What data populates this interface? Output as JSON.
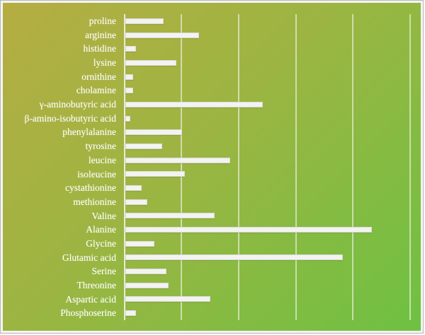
{
  "window": {
    "border_color": "#b7b7b7",
    "frame_fill": "#f4f4f4",
    "background_gradient_start": "#b5ad42",
    "background_gradient_end": "#6ec142"
  },
  "chart_data": {
    "type": "bar",
    "orientation": "horizontal",
    "title": "",
    "xlabel": "",
    "ylabel": "",
    "categories": [
      "proline",
      "arginine",
      "histidine",
      "lysine",
      "ornithine",
      "cholamine",
      "γ-aminobutyric acid",
      "β-amino-isobutyric acid",
      "phenylalanine",
      "tyrosine",
      "leucine",
      "isoleucine",
      "cystathionine",
      "methionine",
      "Valine",
      "Alanine",
      "Glycine",
      "Glutamic acid",
      "Serine",
      "Threonine",
      "Aspartic acid",
      "Phosphoserine"
    ],
    "values": [
      0.67,
      1.29,
      0.18,
      0.89,
      0.14,
      0.13,
      2.4,
      0.09,
      0.99,
      0.64,
      1.83,
      1.04,
      0.29,
      0.38,
      1.56,
      4.3,
      0.51,
      3.8,
      0.72,
      0.76,
      1.49,
      0.19
    ],
    "xlim": [
      0,
      5.17
    ],
    "gridline_interval": 1,
    "gridline_count": 5,
    "grid": "vertical gridlines only",
    "legend_position": "none",
    "axis_tick_labels": "none",
    "bar_color": "#f3f3f1",
    "gridline_color": "#eef1e6",
    "label_color": "#ffffff"
  }
}
